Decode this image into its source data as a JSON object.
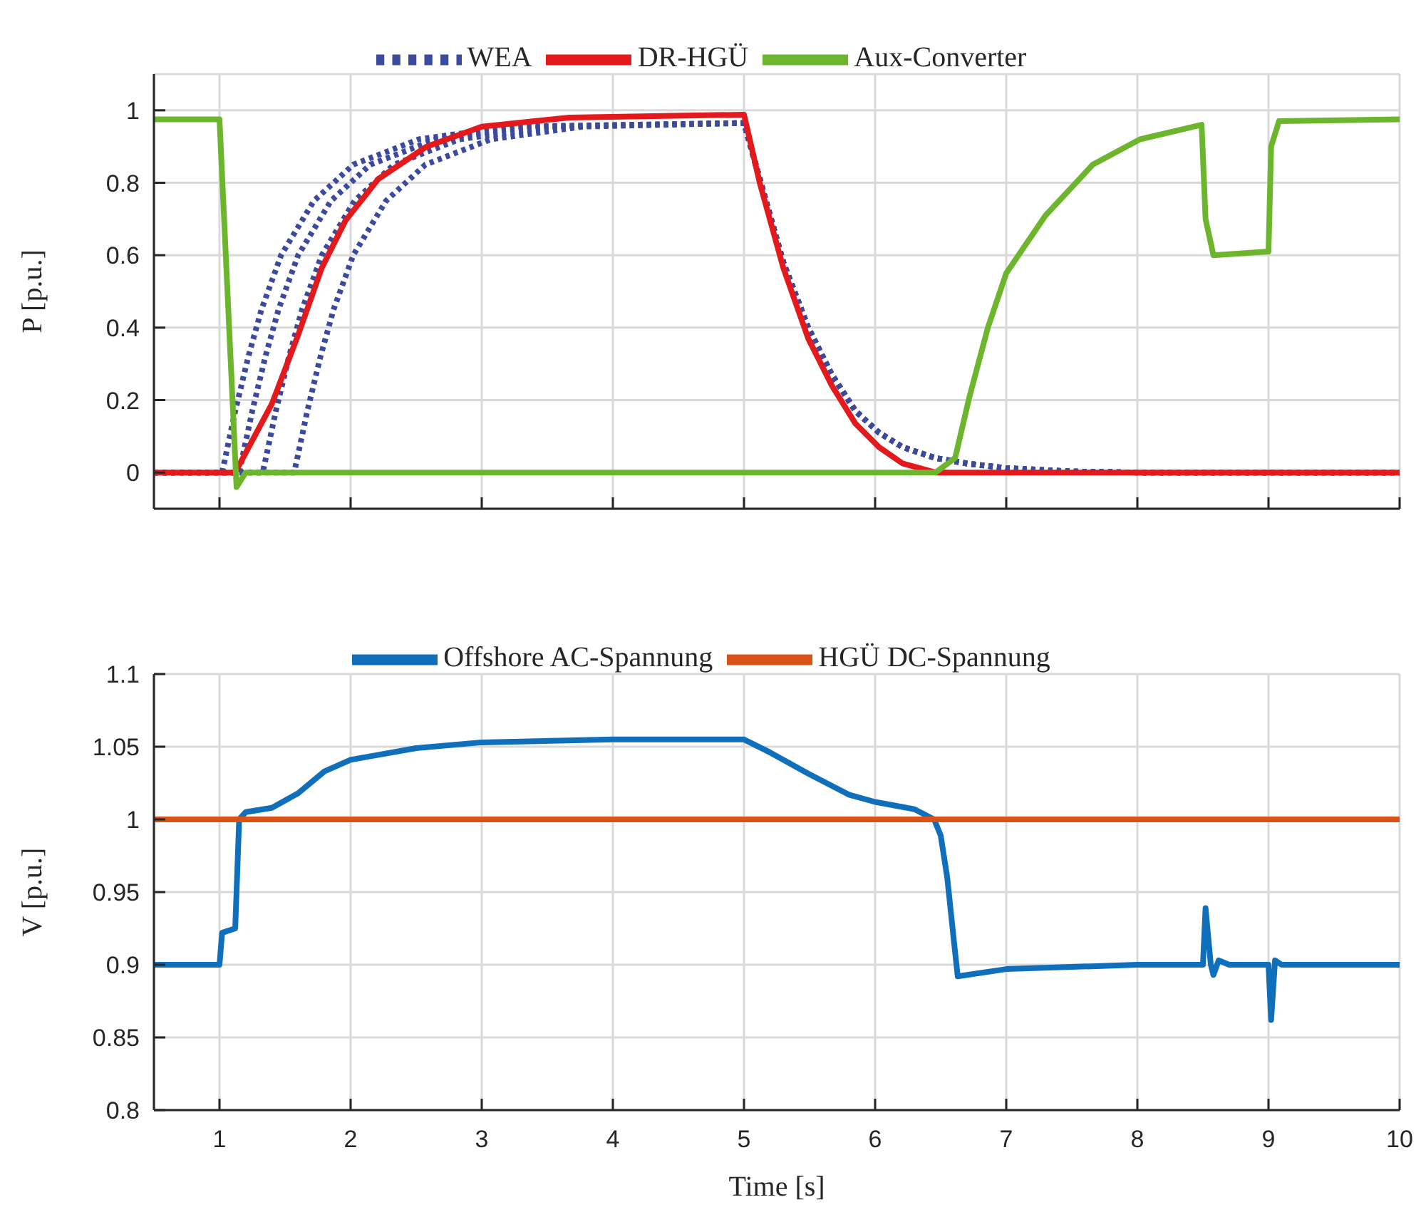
{
  "chart_data": [
    {
      "type": "line",
      "ylabel": "P [p.u.]",
      "xlim": [
        0.5,
        10
      ],
      "xticks": [
        1,
        2,
        3,
        4,
        5,
        6,
        7,
        8,
        9,
        10
      ],
      "ylim": [
        -0.1,
        1.1
      ],
      "yticks": [
        0,
        0.2,
        0.4,
        0.6,
        0.8,
        1
      ],
      "grid": true,
      "legend": "top",
      "tick_labels": "y",
      "series": [
        {
          "name": "WEA",
          "color": "#3b4a9c",
          "line_style": "dotted",
          "x": [
            0.5,
            1.02,
            1.12,
            1.22,
            1.32,
            1.47,
            1.72,
            2.02,
            2.52,
            3.22,
            5.0,
            5.3,
            5.49,
            5.67,
            5.85,
            6.03,
            6.21,
            6.46,
            6.7,
            7.0,
            7.5,
            8.0,
            10
          ],
          "values": [
            0,
            0,
            0.17,
            0.32,
            0.45,
            0.6,
            0.75,
            0.85,
            0.92,
            0.955,
            0.965,
            0.58,
            0.4,
            0.27,
            0.17,
            0.11,
            0.07,
            0.04,
            0.025,
            0.012,
            0.003,
            0,
            0
          ]
        },
        {
          "color": "#3b4a9c",
          "line_style": "dotted",
          "x": [
            0.5,
            1.15,
            1.25,
            1.35,
            1.45,
            1.6,
            1.85,
            2.15,
            2.65,
            3.35,
            5.0,
            5.3,
            5.49,
            5.67,
            5.85,
            6.03,
            6.21,
            6.46,
            6.7,
            7.0,
            7.5,
            8.0,
            10
          ],
          "values": [
            0,
            0,
            0.17,
            0.32,
            0.45,
            0.6,
            0.75,
            0.85,
            0.92,
            0.955,
            0.965,
            0.58,
            0.4,
            0.27,
            0.17,
            0.11,
            0.07,
            0.04,
            0.025,
            0.012,
            0.003,
            0,
            0
          ]
        },
        {
          "color": "#3b4a9c",
          "line_style": "dotted",
          "x": [
            0.5,
            1.33,
            1.43,
            1.53,
            1.63,
            1.78,
            2.03,
            2.33,
            2.83,
            3.53,
            5.0,
            5.3,
            5.49,
            5.67,
            5.85,
            6.03,
            6.21,
            6.46,
            6.7,
            7.0,
            7.5,
            8.0,
            10
          ],
          "values": [
            0,
            0,
            0.17,
            0.32,
            0.45,
            0.6,
            0.75,
            0.85,
            0.92,
            0.955,
            0.965,
            0.58,
            0.4,
            0.27,
            0.17,
            0.11,
            0.07,
            0.04,
            0.025,
            0.012,
            0.003,
            0,
            0
          ]
        },
        {
          "color": "#3b4a9c",
          "line_style": "dotted",
          "x": [
            0.5,
            1.57,
            1.67,
            1.77,
            1.87,
            2.02,
            2.27,
            2.57,
            3.07,
            3.77,
            5.0,
            5.3,
            5.49,
            5.67,
            5.85,
            6.03,
            6.21,
            6.46,
            6.7,
            7.0,
            7.5,
            8.0,
            10
          ],
          "values": [
            0,
            0,
            0.17,
            0.32,
            0.45,
            0.6,
            0.75,
            0.85,
            0.92,
            0.955,
            0.965,
            0.58,
            0.4,
            0.27,
            0.17,
            0.11,
            0.07,
            0.04,
            0.025,
            0.012,
            0.003,
            0,
            0
          ]
        },
        {
          "name": "DR-HGÜ",
          "color": "#e3191c",
          "line_style": "solid",
          "x": [
            0.5,
            1.12,
            1.4,
            1.6,
            1.78,
            1.96,
            2.21,
            2.58,
            3.0,
            3.67,
            5.0,
            5.12,
            5.3,
            5.49,
            5.67,
            5.85,
            6.03,
            6.21,
            6.46,
            10
          ],
          "values": [
            0,
            0,
            0.19,
            0.38,
            0.565,
            0.695,
            0.81,
            0.9,
            0.955,
            0.98,
            0.988,
            0.8,
            0.565,
            0.37,
            0.24,
            0.135,
            0.07,
            0.025,
            0,
            0
          ]
        },
        {
          "name": "Aux-Converter",
          "color": "#6cb52d",
          "line_style": "solid",
          "x": [
            0.5,
            1.0,
            1.13,
            1.2,
            6.46,
            6.61,
            6.72,
            6.86,
            7.0,
            7.3,
            7.66,
            8.02,
            8.49,
            8.52,
            8.58,
            9.0,
            9.02,
            9.08,
            10
          ],
          "values": [
            0.975,
            0.975,
            -0.04,
            0,
            0,
            0.04,
            0.21,
            0.4,
            0.55,
            0.71,
            0.85,
            0.92,
            0.96,
            0.7,
            0.6,
            0.61,
            0.9,
            0.97,
            0.975
          ]
        }
      ]
    },
    {
      "type": "line",
      "xlabel": "Time [s]",
      "ylabel": "V [p.u.]",
      "xlim": [
        0.5,
        10
      ],
      "xticks": [
        1,
        2,
        3,
        4,
        5,
        6,
        7,
        8,
        9,
        10
      ],
      "ylim": [
        0.8,
        1.1
      ],
      "yticks": [
        0.8,
        0.85,
        0.9,
        0.95,
        1,
        1.05,
        1.1
      ],
      "grid": true,
      "legend": "top",
      "series": [
        {
          "name": "Offshore AC-Spannung",
          "color": "#0f6fba",
          "line_style": "solid",
          "x": [
            0.5,
            1.0,
            1.02,
            1.12,
            1.15,
            1.2,
            1.4,
            1.6,
            1.8,
            2.0,
            2.5,
            3.0,
            4.0,
            5.0,
            5.2,
            5.5,
            5.8,
            6.0,
            6.3,
            6.45,
            6.5,
            6.55,
            6.6,
            6.63,
            7.0,
            8.0,
            8.5,
            8.52,
            8.56,
            8.58,
            8.62,
            8.7,
            9.0,
            9.02,
            9.05,
            9.1,
            10
          ],
          "values": [
            0.9,
            0.9,
            0.922,
            0.925,
            1.0,
            1.005,
            1.008,
            1.018,
            1.033,
            1.041,
            1.049,
            1.053,
            1.055,
            1.055,
            1.046,
            1.031,
            1.017,
            1.012,
            1.007,
            1.0,
            0.989,
            0.96,
            0.917,
            0.892,
            0.897,
            0.9,
            0.9,
            0.939,
            0.9,
            0.893,
            0.903,
            0.9,
            0.9,
            0.862,
            0.903,
            0.9,
            0.9
          ]
        },
        {
          "name": "HGÜ DC-Spannung",
          "color": "#d95319",
          "line_style": "solid",
          "x": [
            0.5,
            10
          ],
          "values": [
            1,
            1
          ]
        }
      ]
    }
  ]
}
